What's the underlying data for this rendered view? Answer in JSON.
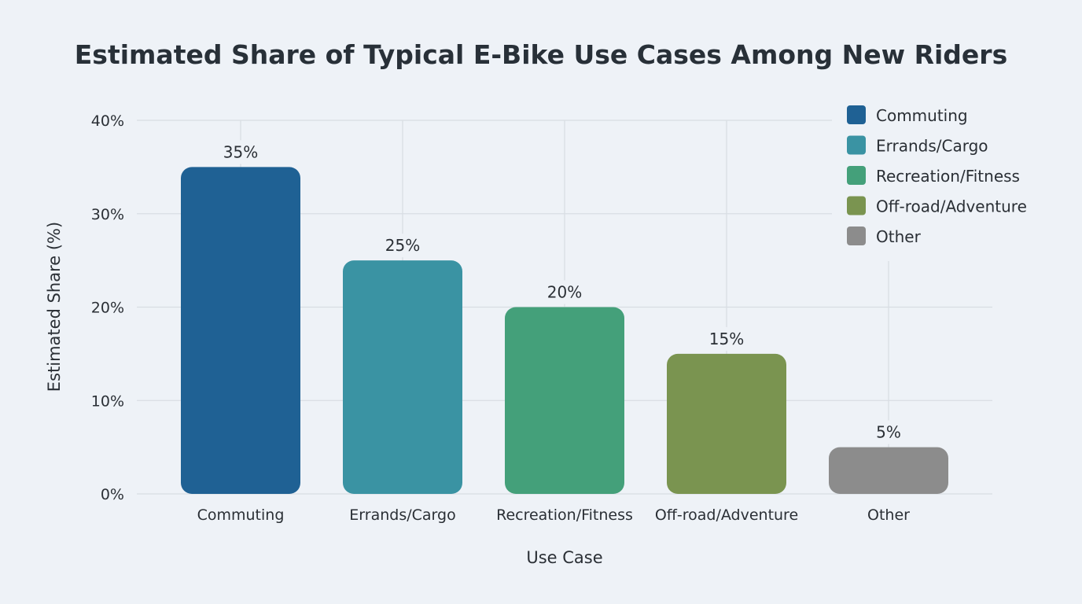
{
  "chart_data": {
    "type": "bar",
    "title": "Estimated Share of Typical E-Bike Use Cases Among New Riders",
    "xlabel": "Use Case",
    "ylabel": "Estimated Share (%)",
    "categories": [
      "Commuting",
      "Errands/Cargo",
      "Recreation/Fitness",
      "Off-road/Adventure",
      "Other"
    ],
    "values": [
      35,
      25,
      20,
      15,
      5
    ],
    "data_labels": [
      "35%",
      "25%",
      "20%",
      "15%",
      "5%"
    ],
    "colors": [
      "#1f6194",
      "#3a93a3",
      "#44a07a",
      "#7a9450",
      "#8c8c8c"
    ],
    "ylim": [
      0,
      40
    ],
    "yticks": [
      0,
      10,
      20,
      30,
      40
    ],
    "ytick_labels": [
      "0%",
      "10%",
      "20%",
      "30%",
      "40%"
    ],
    "grid": true,
    "legend": {
      "placement": "top-right",
      "entries": [
        "Commuting",
        "Errands/Cargo",
        "Recreation/Fitness",
        "Off-road/Adventure",
        "Other"
      ]
    }
  }
}
